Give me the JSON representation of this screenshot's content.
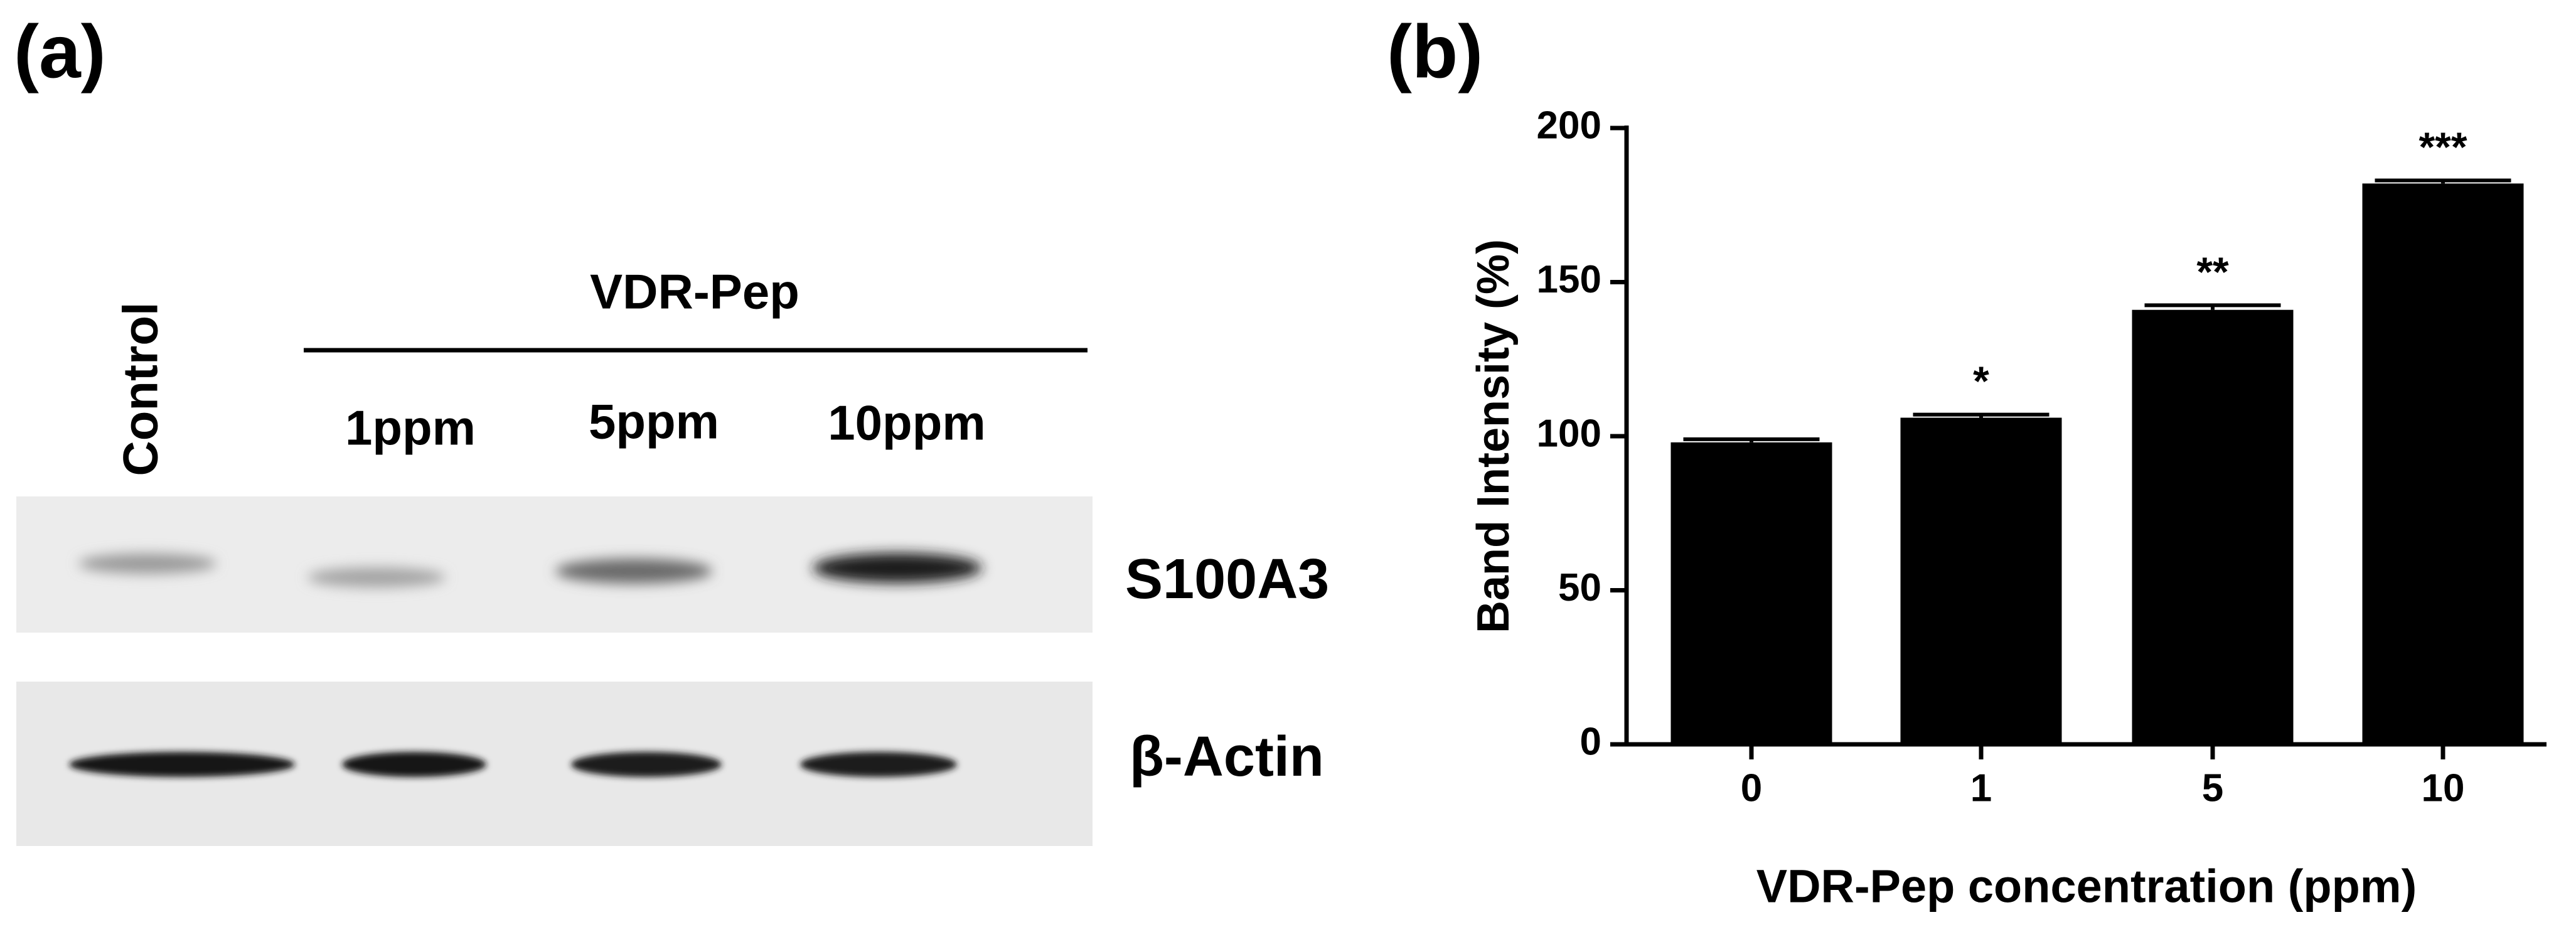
{
  "panel_a": {
    "label": "(a)",
    "control_label": "Control",
    "group_label": "VDR-Pep",
    "lanes": [
      "1ppm",
      "5ppm",
      "10ppm"
    ],
    "blots": [
      "S100A3",
      "β-Actin"
    ]
  },
  "chart_data": {
    "type": "bar",
    "panel_label": "(b)",
    "y_label": "Band Intensity (%)",
    "x_label": "VDR-Pep concentration (ppm)",
    "categories": [
      "0",
      "1",
      "5",
      "10"
    ],
    "values": [
      98,
      106,
      141,
      182
    ],
    "errors": [
      1,
      1,
      1.5,
      1
    ],
    "annotations": [
      null,
      "*",
      "**",
      "***"
    ],
    "color": "#000000",
    "ylim": [
      0,
      200
    ],
    "yticks": [
      0,
      50,
      100,
      150,
      200
    ]
  }
}
